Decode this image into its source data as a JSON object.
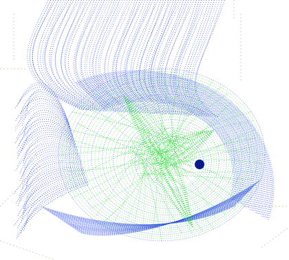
{
  "colors": {
    "background": "#ffffff",
    "grid": "#d9d0b8",
    "blue_cloud": "#1f3fe8",
    "green_cloud": "#2fd83a",
    "center_point": "#0a1a8a"
  },
  "elements": {
    "scene": "point-cloud-3d-view",
    "marker": "center-point"
  }
}
